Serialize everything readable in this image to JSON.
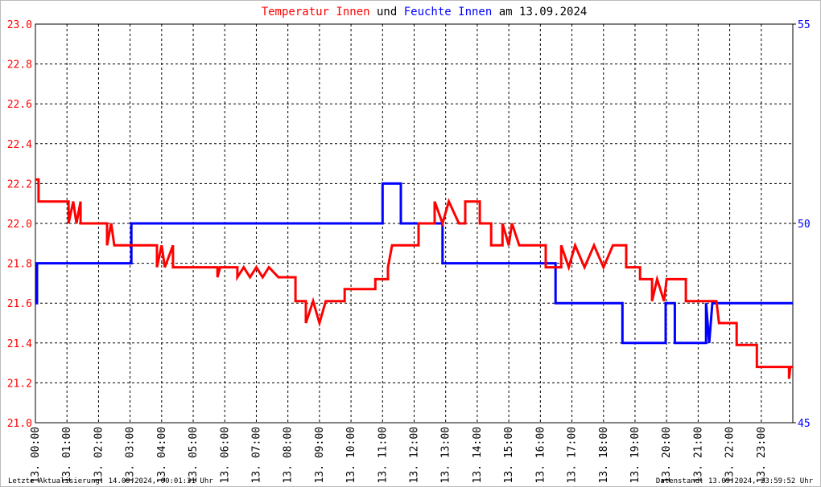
{
  "chart_data": {
    "type": "line",
    "title_connector": "und",
    "title_date": "am 13.09.2024",
    "footer_left": "Letzte Aktualisierung: 14.09.2024, 00:01:31 Uhr",
    "footer_right": "Datenstand: 13.09.2024, 23:59:52 Uhr",
    "grid": true,
    "xlim": [
      0,
      24
    ],
    "xticks": [
      {
        "value": 0,
        "label": "13. 00:00"
      },
      {
        "value": 1,
        "label": "13. 01:00"
      },
      {
        "value": 2,
        "label": "13. 02:00"
      },
      {
        "value": 3,
        "label": "13. 03:00"
      },
      {
        "value": 4,
        "label": "13. 04:00"
      },
      {
        "value": 5,
        "label": "13. 05:00"
      },
      {
        "value": 6,
        "label": "13. 06:00"
      },
      {
        "value": 7,
        "label": "13. 07:00"
      },
      {
        "value": 8,
        "label": "13. 08:00"
      },
      {
        "value": 9,
        "label": "13. 09:00"
      },
      {
        "value": 10,
        "label": "13. 10:00"
      },
      {
        "value": 11,
        "label": "13. 11:00"
      },
      {
        "value": 12,
        "label": "13. 12:00"
      },
      {
        "value": 13,
        "label": "13. 13:00"
      },
      {
        "value": 14,
        "label": "13. 14:00"
      },
      {
        "value": 15,
        "label": "13. 15:00"
      },
      {
        "value": 16,
        "label": "13. 16:00"
      },
      {
        "value": 17,
        "label": "13. 17:00"
      },
      {
        "value": 18,
        "label": "13. 18:00"
      },
      {
        "value": 19,
        "label": "13. 19:00"
      },
      {
        "value": 20,
        "label": "13. 20:00"
      },
      {
        "value": 21,
        "label": "13. 21:00"
      },
      {
        "value": 22,
        "label": "13. 22:00"
      },
      {
        "value": 23,
        "label": "13. 23:00"
      }
    ],
    "ylim": [
      21.0,
      23.0
    ],
    "yticks": [
      {
        "value": 21.0,
        "label": "21.0"
      },
      21.2,
      21.4,
      21.6,
      21.8,
      {
        "value": 22.0,
        "label": "22.0"
      },
      22.2,
      22.4,
      22.6,
      22.8,
      {
        "value": 23.0,
        "label": "23.0"
      }
    ],
    "y2lim": [
      45,
      55
    ],
    "y2ticks": [
      45,
      50,
      55
    ],
    "series": [
      {
        "name": "Feuchte Innen",
        "color": "#0000ff",
        "axis": "y2",
        "x": [
          0,
          0.05,
          0.05,
          3.04,
          3.04,
          11.0,
          11.0,
          11.58,
          11.58,
          12.9,
          12.9,
          16.48,
          16.48,
          18.6,
          18.6,
          19.97,
          19.97,
          20.26,
          20.26,
          21.25,
          21.25,
          21.35,
          21.45,
          24
        ],
        "values": [
          48,
          48,
          49,
          49,
          50,
          50,
          51,
          51,
          50,
          50,
          49,
          49,
          48,
          48,
          47,
          47,
          48,
          48,
          47,
          47,
          48,
          47,
          48,
          48
        ]
      },
      {
        "name": "Temperatur Innen",
        "color": "#ff0000",
        "x": [
          0,
          0.1,
          0.1,
          1.05,
          1.05,
          1.2,
          1.3,
          1.43,
          1.43,
          2.27,
          2.27,
          2.4,
          2.5,
          3.85,
          3.85,
          4.0,
          4.1,
          4.36,
          4.36,
          5.77,
          5.77,
          5.85,
          6.4,
          6.4,
          6.6,
          6.8,
          7.0,
          7.2,
          7.4,
          7.7,
          8.24,
          8.24,
          8.57,
          8.57,
          8.8,
          9.0,
          9.2,
          9.8,
          9.8,
          10.77,
          10.77,
          11.17,
          11.17,
          11.3,
          11.38,
          12.14,
          12.14,
          12.65,
          12.65,
          12.9,
          13.1,
          13.42,
          13.62,
          13.62,
          14.08,
          14.08,
          14.44,
          14.44,
          14.8,
          14.8,
          15.0,
          15.1,
          15.33,
          16.17,
          16.17,
          16.66,
          16.66,
          16.9,
          17.1,
          17.4,
          17.7,
          18.0,
          18.3,
          18.72,
          18.72,
          19.16,
          19.16,
          19.54,
          19.54,
          19.7,
          19.92,
          20.0,
          20.61,
          20.61,
          21.58,
          21.66,
          22.22,
          22.22,
          22.86,
          22.86,
          23.88,
          23.88,
          23.92,
          24
        ],
        "values": [
          22.22,
          22.22,
          22.11,
          22.11,
          22.0,
          22.11,
          22.0,
          22.11,
          22.0,
          22.0,
          21.89,
          22.0,
          21.89,
          21.89,
          21.78,
          21.89,
          21.78,
          21.89,
          21.78,
          21.78,
          21.73,
          21.78,
          21.78,
          21.73,
          21.78,
          21.73,
          21.78,
          21.73,
          21.78,
          21.73,
          21.73,
          21.61,
          21.61,
          21.5,
          21.61,
          21.5,
          21.61,
          21.61,
          21.67,
          21.67,
          21.72,
          21.72,
          21.78,
          21.89,
          21.89,
          21.89,
          22.0,
          22.0,
          22.11,
          22.0,
          22.11,
          22.0,
          22.0,
          22.11,
          22.11,
          22.0,
          22.0,
          21.89,
          21.89,
          22.0,
          21.89,
          22.0,
          21.89,
          21.89,
          21.78,
          21.78,
          21.89,
          21.78,
          21.89,
          21.78,
          21.89,
          21.78,
          21.89,
          21.89,
          21.78,
          21.78,
          21.72,
          21.72,
          21.61,
          21.72,
          21.61,
          21.72,
          21.72,
          21.61,
          21.61,
          21.5,
          21.5,
          21.39,
          21.39,
          21.28,
          21.28,
          21.22,
          21.28,
          21.28
        ]
      }
    ]
  }
}
